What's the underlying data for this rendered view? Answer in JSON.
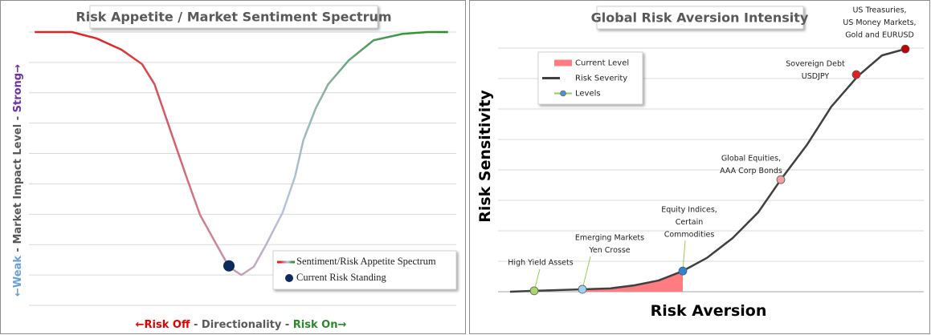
{
  "chart_data": [
    {
      "type": "line",
      "title": "Risk Appetite / Market Sentiment Spectrum",
      "xlabel_parts": [
        {
          "text": "←Risk Off",
          "color": "#e00000"
        },
        {
          "text": " - Directionality - ",
          "color": "#595959"
        },
        {
          "text": "Risk On→",
          "color": "#2a8a2a"
        }
      ],
      "ylabel_parts": [
        {
          "text": "←Weak",
          "color": "#6a9fd8"
        },
        {
          "text": " - Market Impact Level - ",
          "color": "#595959"
        },
        {
          "text": "Strong→",
          "color": "#7030a0"
        }
      ],
      "x": [
        0,
        9,
        15,
        21,
        26,
        29,
        31,
        34,
        37,
        40,
        44,
        47,
        50,
        53,
        56,
        60,
        63,
        65,
        68,
        71,
        76,
        82,
        89,
        95,
        100
      ],
      "xlim": [
        -1.4,
        102
      ],
      "ylim": [
        0,
        9
      ],
      "yticks": [
        0,
        1,
        2,
        3,
        4,
        5,
        6,
        7,
        8,
        9
      ],
      "grid": true,
      "legend": "lower right",
      "series": [
        {
          "name": "Sentiment/Risk Appetite Spectrum",
          "gradient": [
            "#e52020",
            "#e02828",
            "#d07a8a",
            "#b8c4dc",
            "#4f9c5a",
            "#1f8a1f"
          ],
          "values": [
            9.0,
            9.0,
            8.79,
            8.42,
            7.94,
            7.28,
            6.49,
            5.3,
            4.12,
            2.98,
            2.0,
            1.27,
            1.0,
            1.27,
            2.0,
            3.06,
            4.25,
            5.44,
            6.49,
            7.28,
            8.07,
            8.73,
            8.94,
            9.0,
            9.0
          ]
        },
        {
          "name": "Current Risk Standing",
          "type": "scatter",
          "color": "#0d2a5e",
          "x": [
            47
          ],
          "values": [
            1.3
          ]
        }
      ]
    },
    {
      "type": "line",
      "title": "Global Risk Aversion Intensity",
      "xlabel_parts": [
        {
          "text": "Risk Aversion",
          "color": "#000000"
        }
      ],
      "ylabel_parts": [
        {
          "text": "Risk Sensitivity",
          "color": "#000000"
        }
      ],
      "x": [
        0,
        6,
        18,
        25,
        31,
        37,
        43,
        49,
        55.4,
        61.8,
        67.4,
        74,
        80,
        86.6,
        92.6,
        98.4
      ],
      "xlim": [
        -3,
        103
      ],
      "ylim": [
        0,
        9
      ],
      "yticks": [
        0,
        1,
        2,
        3,
        4,
        5,
        6,
        7,
        8
      ],
      "grid": true,
      "legend": "upper left",
      "series": [
        {
          "name": "Current Level",
          "type": "area",
          "color": "#ff7c80",
          "values": [
            null,
            null,
            0.08,
            0.11,
            0.21,
            0.37,
            0.68,
            null,
            null,
            null,
            null,
            null,
            null,
            null,
            null,
            null
          ]
        },
        {
          "name": "Risk Severity",
          "color": "#404040",
          "values": [
            0,
            0.03,
            0.08,
            0.11,
            0.21,
            0.37,
            0.68,
            1.11,
            1.76,
            2.61,
            3.68,
            4.84,
            6.08,
            7.08,
            7.76,
            7.97
          ]
        },
        {
          "name": "Levels",
          "type": "scatter",
          "color": "#92d050",
          "marker_color": "#4a90d9",
          "x": [
            6,
            18,
            43,
            67.4,
            86.2,
            98.4
          ],
          "values": [
            0.03,
            0.08,
            0.68,
            3.68,
            7.13,
            7.97
          ],
          "point_colors": [
            "#a9d46f",
            "#9dd3f0",
            "#2e86d0",
            "#f0a0a0",
            "#e02020",
            "#c00000"
          ],
          "labels": [
            [
              "High Yield Assets"
            ],
            [
              "Emerging Markets",
              "Yen Crosse"
            ],
            [
              "Equity Indices,",
              "Certain",
              "Commodities"
            ],
            [
              "Global Equities,",
              "AAA Corp Bonds"
            ],
            [
              "Sovereign Debt",
              "USDJPY"
            ],
            [
              "US Treasuries,",
              "US Money Markets,",
              "Gold and EURUSD"
            ]
          ]
        }
      ]
    }
  ]
}
